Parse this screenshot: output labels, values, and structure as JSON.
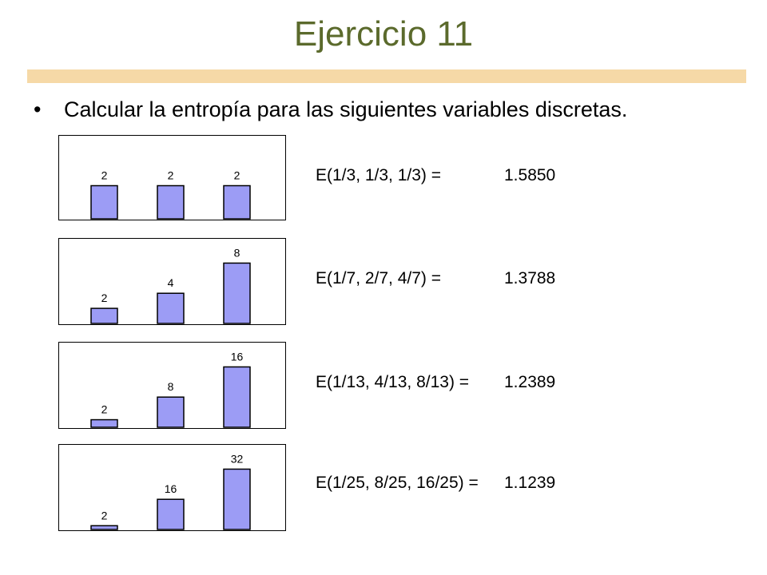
{
  "slide": {
    "title": "Ejercicio 11",
    "bullet": "Calcular la entropía para las siguientes variables discretas."
  },
  "colors": {
    "title": "#5b6a2c",
    "title_bar": "#f6d9a7",
    "bar_fill": "#9c9cf5",
    "bar_stroke": "#000000"
  },
  "equations": [
    {
      "formula": "E(1/3, 1/3, 1/3) =",
      "value": "1.5850"
    },
    {
      "formula": "E(1/7, 2/7, 4/7) =",
      "value": "1.3788"
    },
    {
      "formula": "E(1/13, 4/13, 8/13) =",
      "value": "1.2389"
    },
    {
      "formula": "E(1/25, 8/25, 16/25) =",
      "value": "1.1239"
    }
  ],
  "chart_data": [
    {
      "type": "bar",
      "values": [
        2,
        2,
        2
      ],
      "data_labels": [
        "2",
        "2",
        "2"
      ],
      "ylim": [
        0,
        4
      ]
    },
    {
      "type": "bar",
      "values": [
        2,
        4,
        8
      ],
      "data_labels": [
        "2",
        "4",
        "8"
      ],
      "ylim": [
        0,
        9
      ]
    },
    {
      "type": "bar",
      "values": [
        2,
        8,
        16
      ],
      "data_labels": [
        "2",
        "8",
        "16"
      ],
      "ylim": [
        0,
        18
      ]
    },
    {
      "type": "bar",
      "values": [
        2,
        16,
        32
      ],
      "data_labels": [
        "2",
        "16",
        "32"
      ],
      "ylim": [
        0,
        36
      ]
    }
  ]
}
